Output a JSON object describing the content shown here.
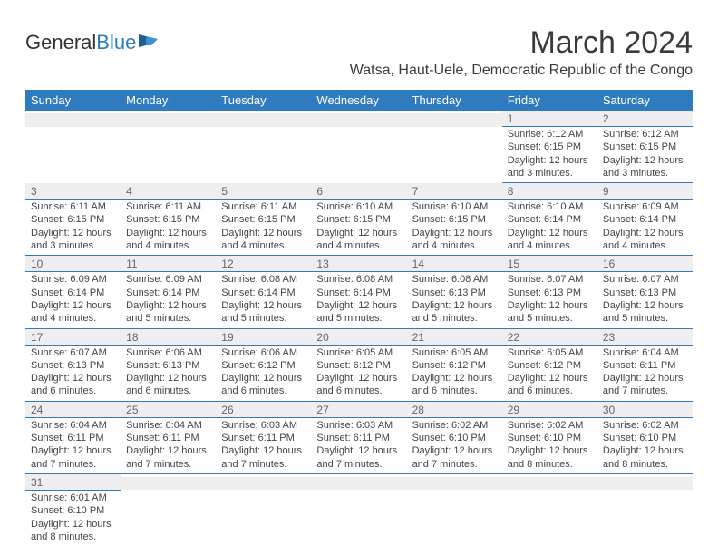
{
  "brand": {
    "part1": "General",
    "part2": "Blue"
  },
  "title": "March 2024",
  "subtitle": "Watsa, Haut-Uele, Democratic Republic of the Congo",
  "weekdays": [
    "Sunday",
    "Monday",
    "Tuesday",
    "Wednesday",
    "Thursday",
    "Friday",
    "Saturday"
  ],
  "colors": {
    "header_bg": "#2f7bbf",
    "header_text": "#ffffff",
    "daynum_bg": "#eeeeee",
    "row_border": "#2f7bbf",
    "text": "#444444"
  },
  "weeks": [
    [
      {
        "n": "",
        "sr": "",
        "ss": "",
        "dl": ""
      },
      {
        "n": "",
        "sr": "",
        "ss": "",
        "dl": ""
      },
      {
        "n": "",
        "sr": "",
        "ss": "",
        "dl": ""
      },
      {
        "n": "",
        "sr": "",
        "ss": "",
        "dl": ""
      },
      {
        "n": "",
        "sr": "",
        "ss": "",
        "dl": ""
      },
      {
        "n": "1",
        "sr": "Sunrise: 6:12 AM",
        "ss": "Sunset: 6:15 PM",
        "dl": "Daylight: 12 hours and 3 minutes."
      },
      {
        "n": "2",
        "sr": "Sunrise: 6:12 AM",
        "ss": "Sunset: 6:15 PM",
        "dl": "Daylight: 12 hours and 3 minutes."
      }
    ],
    [
      {
        "n": "3",
        "sr": "Sunrise: 6:11 AM",
        "ss": "Sunset: 6:15 PM",
        "dl": "Daylight: 12 hours and 3 minutes."
      },
      {
        "n": "4",
        "sr": "Sunrise: 6:11 AM",
        "ss": "Sunset: 6:15 PM",
        "dl": "Daylight: 12 hours and 4 minutes."
      },
      {
        "n": "5",
        "sr": "Sunrise: 6:11 AM",
        "ss": "Sunset: 6:15 PM",
        "dl": "Daylight: 12 hours and 4 minutes."
      },
      {
        "n": "6",
        "sr": "Sunrise: 6:10 AM",
        "ss": "Sunset: 6:15 PM",
        "dl": "Daylight: 12 hours and 4 minutes."
      },
      {
        "n": "7",
        "sr": "Sunrise: 6:10 AM",
        "ss": "Sunset: 6:15 PM",
        "dl": "Daylight: 12 hours and 4 minutes."
      },
      {
        "n": "8",
        "sr": "Sunrise: 6:10 AM",
        "ss": "Sunset: 6:14 PM",
        "dl": "Daylight: 12 hours and 4 minutes."
      },
      {
        "n": "9",
        "sr": "Sunrise: 6:09 AM",
        "ss": "Sunset: 6:14 PM",
        "dl": "Daylight: 12 hours and 4 minutes."
      }
    ],
    [
      {
        "n": "10",
        "sr": "Sunrise: 6:09 AM",
        "ss": "Sunset: 6:14 PM",
        "dl": "Daylight: 12 hours and 4 minutes."
      },
      {
        "n": "11",
        "sr": "Sunrise: 6:09 AM",
        "ss": "Sunset: 6:14 PM",
        "dl": "Daylight: 12 hours and 5 minutes."
      },
      {
        "n": "12",
        "sr": "Sunrise: 6:08 AM",
        "ss": "Sunset: 6:14 PM",
        "dl": "Daylight: 12 hours and 5 minutes."
      },
      {
        "n": "13",
        "sr": "Sunrise: 6:08 AM",
        "ss": "Sunset: 6:14 PM",
        "dl": "Daylight: 12 hours and 5 minutes."
      },
      {
        "n": "14",
        "sr": "Sunrise: 6:08 AM",
        "ss": "Sunset: 6:13 PM",
        "dl": "Daylight: 12 hours and 5 minutes."
      },
      {
        "n": "15",
        "sr": "Sunrise: 6:07 AM",
        "ss": "Sunset: 6:13 PM",
        "dl": "Daylight: 12 hours and 5 minutes."
      },
      {
        "n": "16",
        "sr": "Sunrise: 6:07 AM",
        "ss": "Sunset: 6:13 PM",
        "dl": "Daylight: 12 hours and 5 minutes."
      }
    ],
    [
      {
        "n": "17",
        "sr": "Sunrise: 6:07 AM",
        "ss": "Sunset: 6:13 PM",
        "dl": "Daylight: 12 hours and 6 minutes."
      },
      {
        "n": "18",
        "sr": "Sunrise: 6:06 AM",
        "ss": "Sunset: 6:13 PM",
        "dl": "Daylight: 12 hours and 6 minutes."
      },
      {
        "n": "19",
        "sr": "Sunrise: 6:06 AM",
        "ss": "Sunset: 6:12 PM",
        "dl": "Daylight: 12 hours and 6 minutes."
      },
      {
        "n": "20",
        "sr": "Sunrise: 6:05 AM",
        "ss": "Sunset: 6:12 PM",
        "dl": "Daylight: 12 hours and 6 minutes."
      },
      {
        "n": "21",
        "sr": "Sunrise: 6:05 AM",
        "ss": "Sunset: 6:12 PM",
        "dl": "Daylight: 12 hours and 6 minutes."
      },
      {
        "n": "22",
        "sr": "Sunrise: 6:05 AM",
        "ss": "Sunset: 6:12 PM",
        "dl": "Daylight: 12 hours and 6 minutes."
      },
      {
        "n": "23",
        "sr": "Sunrise: 6:04 AM",
        "ss": "Sunset: 6:11 PM",
        "dl": "Daylight: 12 hours and 7 minutes."
      }
    ],
    [
      {
        "n": "24",
        "sr": "Sunrise: 6:04 AM",
        "ss": "Sunset: 6:11 PM",
        "dl": "Daylight: 12 hours and 7 minutes."
      },
      {
        "n": "25",
        "sr": "Sunrise: 6:04 AM",
        "ss": "Sunset: 6:11 PM",
        "dl": "Daylight: 12 hours and 7 minutes."
      },
      {
        "n": "26",
        "sr": "Sunrise: 6:03 AM",
        "ss": "Sunset: 6:11 PM",
        "dl": "Daylight: 12 hours and 7 minutes."
      },
      {
        "n": "27",
        "sr": "Sunrise: 6:03 AM",
        "ss": "Sunset: 6:11 PM",
        "dl": "Daylight: 12 hours and 7 minutes."
      },
      {
        "n": "28",
        "sr": "Sunrise: 6:02 AM",
        "ss": "Sunset: 6:10 PM",
        "dl": "Daylight: 12 hours and 7 minutes."
      },
      {
        "n": "29",
        "sr": "Sunrise: 6:02 AM",
        "ss": "Sunset: 6:10 PM",
        "dl": "Daylight: 12 hours and 8 minutes."
      },
      {
        "n": "30",
        "sr": "Sunrise: 6:02 AM",
        "ss": "Sunset: 6:10 PM",
        "dl": "Daylight: 12 hours and 8 minutes."
      }
    ],
    [
      {
        "n": "31",
        "sr": "Sunrise: 6:01 AM",
        "ss": "Sunset: 6:10 PM",
        "dl": "Daylight: 12 hours and 8 minutes."
      },
      {
        "n": "",
        "sr": "",
        "ss": "",
        "dl": ""
      },
      {
        "n": "",
        "sr": "",
        "ss": "",
        "dl": ""
      },
      {
        "n": "",
        "sr": "",
        "ss": "",
        "dl": ""
      },
      {
        "n": "",
        "sr": "",
        "ss": "",
        "dl": ""
      },
      {
        "n": "",
        "sr": "",
        "ss": "",
        "dl": ""
      },
      {
        "n": "",
        "sr": "",
        "ss": "",
        "dl": ""
      }
    ]
  ]
}
